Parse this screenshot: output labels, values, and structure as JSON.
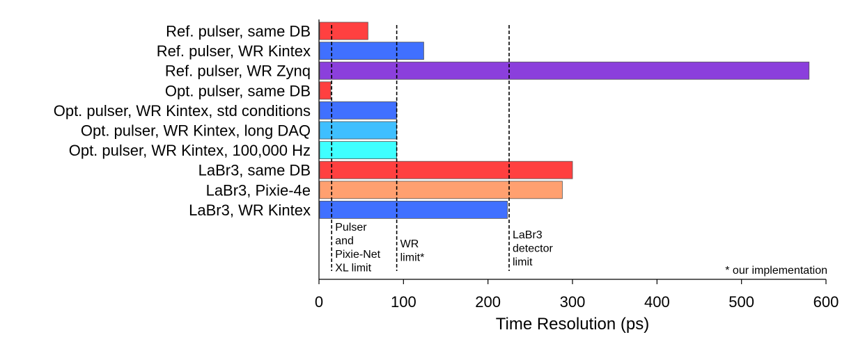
{
  "chart_data": {
    "type": "bar",
    "orientation": "horizontal",
    "categories": [
      "Ref. pulser, same DB",
      "Ref. pulser, WR Kintex",
      "Ref. pulser, WR Zynq",
      "Opt. pulser, same DB",
      "Opt. pulser, WR Kintex, std conditions",
      "Opt. pulser, WR Kintex, long DAQ",
      "Opt. pulser, WR Kintex, 100,000 Hz",
      "LaBr3, same DB",
      "LaBr3, Pixie-4e",
      "LaBr3, WR Kintex"
    ],
    "values": [
      58,
      124,
      580,
      14,
      92,
      92,
      92,
      300,
      288,
      223
    ],
    "bar_colors": [
      "#ff4040",
      "#4070ff",
      "#8b3fdc",
      "#ff4040",
      "#4070ff",
      "#3fbfff",
      "#3fffff",
      "#ff4040",
      "#ffa070",
      "#4070ff"
    ],
    "xlabel": "Time Resolution (ps)",
    "ylabel": "",
    "xlim": [
      0,
      600
    ],
    "xticks": [
      0,
      100,
      200,
      300,
      400,
      500,
      600
    ],
    "xtick_labels": [
      "0",
      "100",
      "200",
      "300",
      "400",
      "500",
      "600"
    ],
    "grid": false,
    "limit_lines": [
      {
        "x": 15,
        "label_lines": [
          "Pulser",
          "and",
          "Pixie-Net",
          "XL limit"
        ]
      },
      {
        "x": 92,
        "label_lines": [
          "WR",
          "limit*"
        ]
      },
      {
        "x": 225,
        "label_lines": [
          "LaBr3",
          "detector",
          "limit"
        ]
      }
    ],
    "footnote": "* our implementation"
  }
}
